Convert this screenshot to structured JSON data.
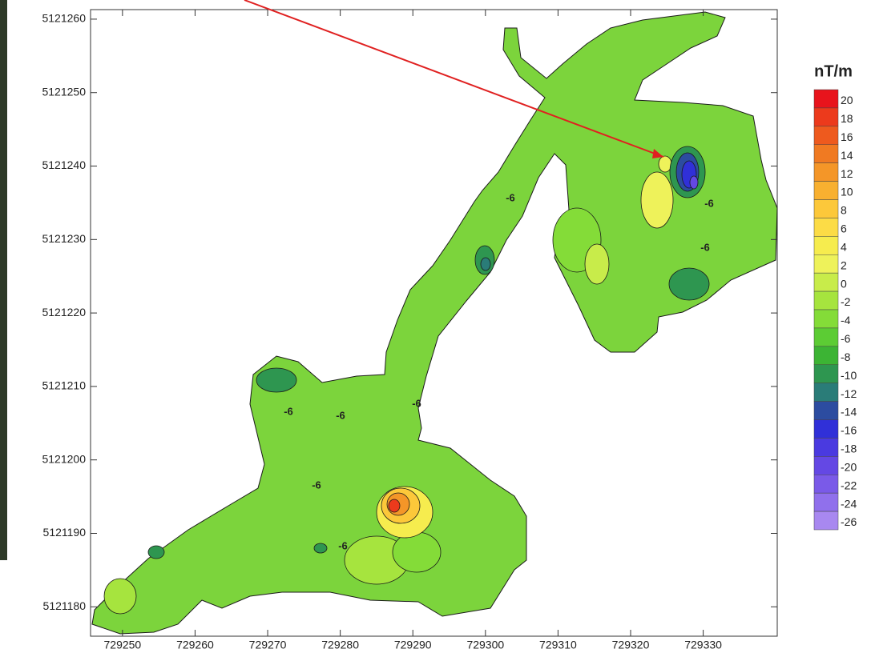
{
  "chart_data": {
    "type": "contour",
    "xlim": [
      729245.6,
      729340.2
    ],
    "ylim": [
      5121176,
      5121261.3
    ],
    "xticks": [
      729250,
      729260,
      729270,
      729280,
      729290,
      729300,
      729310,
      729320,
      729330
    ],
    "yticks": [
      5121180,
      5121190,
      5121200,
      5121210,
      5121220,
      5121230,
      5121240,
      5121250,
      5121260
    ],
    "colorbar": {
      "title": "nT/m",
      "levels": [
        20,
        18,
        16,
        14,
        12,
        10,
        8,
        6,
        4,
        2,
        0,
        -2,
        -4,
        -6,
        -8,
        -10,
        -12,
        -14,
        -16,
        -18,
        -20,
        -22,
        -24,
        -26
      ],
      "colors": [
        "#e8141c",
        "#ec3a1c",
        "#ee5a1e",
        "#f07a22",
        "#f49628",
        "#f8b030",
        "#fcc83a",
        "#fcdc46",
        "#f6ec4e",
        "#eef25a",
        "#c8ec4a",
        "#a6e43e",
        "#84dc38",
        "#5ccc34",
        "#3cb434",
        "#2e9650",
        "#2a7c78",
        "#2c4ca0",
        "#3030d8",
        "#4a3ae0",
        "#6448e4",
        "#7a5ae8",
        "#9070ec",
        "#a888f0"
      ]
    },
    "contour_labels": [
      -6,
      -6,
      -6,
      -6,
      -6,
      -6,
      -6,
      -6
    ]
  }
}
